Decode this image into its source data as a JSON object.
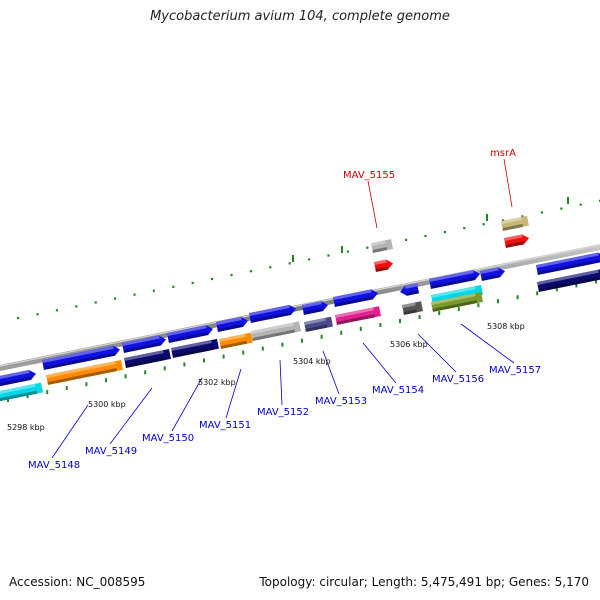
{
  "title": "Mycobacterium avium 104, complete genome",
  "footer": {
    "accession": "Accession: NC_008595",
    "summary": "Topology: circular; Length: 5,475,491 bp; Genes: 5,170"
  },
  "scale": {
    "labels": [
      "5298 kbp",
      "5300 kbp",
      "5302 kbp",
      "5304 kbp",
      "5306 kbp",
      "5308 kbp"
    ]
  },
  "colors": {
    "blue": "#1010e0",
    "navy": "#0a0a6e",
    "orange": "#ff8c00",
    "cyan": "#00d8e8",
    "gray": "#b4b4b4",
    "slate": "#4a4a8c",
    "magenta": "#e0208c",
    "darkgray": "#555555",
    "olive": "#7a9a2a",
    "khaki": "#c8b878",
    "red": "#ee1010",
    "label_blue": "#0000cc",
    "label_red": "#cc0000",
    "tick_green": "#228822"
  },
  "gene_labels": [
    {
      "name": "MAV_5148",
      "color": "blue"
    },
    {
      "name": "MAV_5149",
      "color": "blue"
    },
    {
      "name": "MAV_5150",
      "color": "blue"
    },
    {
      "name": "MAV_5151",
      "color": "blue"
    },
    {
      "name": "MAV_5152",
      "color": "blue"
    },
    {
      "name": "MAV_5153",
      "color": "blue"
    },
    {
      "name": "MAV_5154",
      "color": "blue"
    },
    {
      "name": "MAV_5155",
      "color": "red"
    },
    {
      "name": "MAV_5156",
      "color": "blue"
    },
    {
      "name": "MAV_5157",
      "color": "blue"
    },
    {
      "name": "msrA",
      "color": "red"
    }
  ]
}
